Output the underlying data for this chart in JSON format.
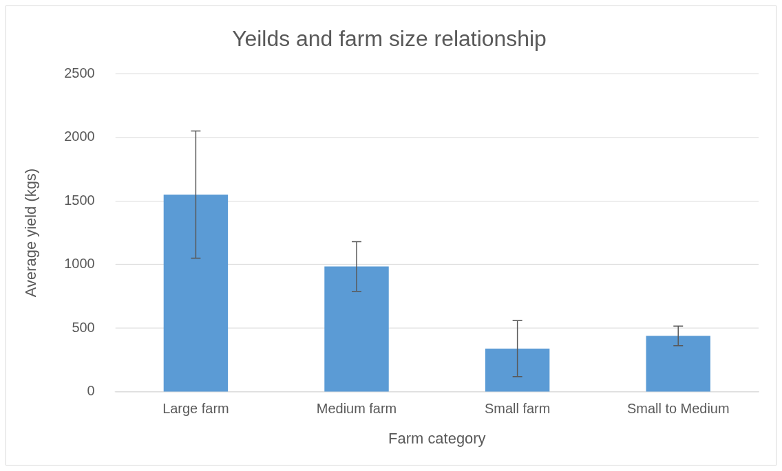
{
  "chart_data": {
    "type": "bar",
    "title": "Yeilds and farm size relationship",
    "xlabel": "Farm category",
    "ylabel": "Average yield (kgs)",
    "categories": [
      "Large farm",
      "Medium farm",
      "Small farm",
      "Small to Medium"
    ],
    "values": [
      1550,
      985,
      340,
      440
    ],
    "errors": [
      500,
      195,
      220,
      77
    ],
    "color": "#5b9bd5",
    "ylim": [
      0,
      2500
    ],
    "yticks": [
      0,
      500,
      1000,
      1500,
      2000,
      2500
    ],
    "grid": "y"
  }
}
